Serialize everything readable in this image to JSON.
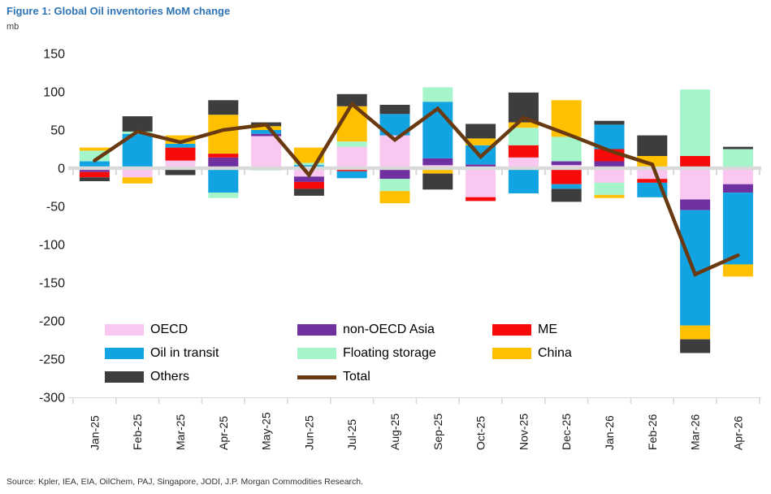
{
  "title": "Figure 1: Global Oil inventories MoM change",
  "unit_label": "mb",
  "source": "Source: Kpler, IEA, EIA, OilChem, PAJ, Singapore, JODI, J.P. Morgan Commodities Research.",
  "colors": {
    "title_blue": "#2E74B5",
    "zero_line_gray": "#D9D9D9",
    "axis_text": "#1a1a1a"
  },
  "chart_data": {
    "type": "bar",
    "stacked": true,
    "grid": false,
    "legend_position": "inside-lower-left",
    "title": "Figure 1: Global Oil inventories MoM change",
    "ylabel": "mb",
    "ylim": [
      -300,
      150
    ],
    "yticks": [
      150,
      100,
      50,
      0,
      -50,
      -100,
      -150,
      -200,
      -250,
      -300
    ],
    "categories": [
      "Jan-25",
      "Feb-25",
      "Mar-25",
      "Apr-25",
      "May-25",
      "Jun-25",
      "Jul-25",
      "Aug-25",
      "Sep-25",
      "Oct-25",
      "Nov-25",
      "Dec-25",
      "Jan-26",
      "Feb-26",
      "Mar-26",
      "Apr-26"
    ],
    "series": [
      {
        "name": "OECD",
        "color": "#F9C7F0",
        "values": [
          0,
          -12,
          10,
          0,
          42,
          -11,
          28,
          43,
          4,
          -38,
          14,
          4,
          -19,
          -14,
          -41,
          -21
        ]
      },
      {
        "name": "non-OECD Asia",
        "color": "#7030A0",
        "values": [
          -5,
          0,
          0,
          14,
          3,
          -7,
          0,
          -14,
          9,
          5,
          0,
          5,
          9,
          0,
          -14,
          -11
        ]
      },
      {
        "name": "ME",
        "color": "#F60A0A",
        "values": [
          -7,
          0,
          17,
          5,
          0,
          -9,
          -4,
          0,
          0,
          -5,
          16,
          -21,
          16,
          -5,
          16,
          0
        ]
      },
      {
        "name": "Oil in transit",
        "color": "#12A3E3",
        "values": [
          9,
          45,
          5,
          -32,
          5,
          4,
          -9,
          28,
          74,
          25,
          -33,
          -6,
          32,
          -19,
          -151,
          -94
        ]
      },
      {
        "name": "Floating storage",
        "color": "#A6F4CA",
        "values": [
          14,
          3,
          0,
          -7,
          -3,
          3,
          7,
          -16,
          19,
          0,
          23,
          32,
          -16,
          0,
          87,
          25
        ]
      },
      {
        "name": "China",
        "color": "#FFC000",
        "values": [
          4,
          -8,
          11,
          51,
          5,
          20,
          46,
          -16,
          -7,
          9,
          7,
          48,
          -4,
          16,
          -18,
          -16
        ]
      },
      {
        "name": "Others",
        "color": "#3D3D3D",
        "values": [
          -5,
          20,
          -9,
          19,
          5,
          -9,
          16,
          12,
          -21,
          19,
          39,
          -17,
          5,
          27,
          -18,
          3
        ]
      }
    ],
    "total_line": {
      "name": "Total",
      "color": "#693A12",
      "values": [
        10,
        48,
        34,
        50,
        57,
        -9,
        84,
        37,
        78,
        15,
        66,
        45,
        23,
        5,
        -139,
        -114
      ]
    }
  }
}
